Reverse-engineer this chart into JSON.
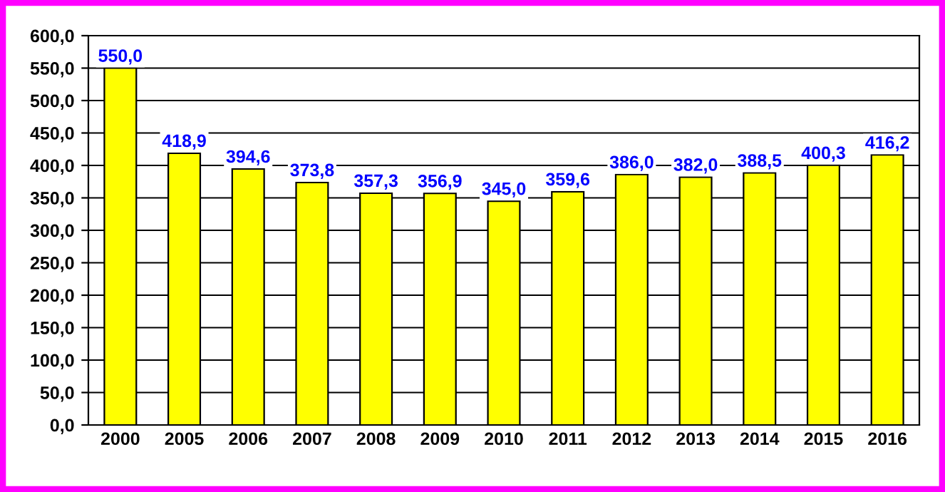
{
  "chart_data": {
    "type": "bar",
    "categories": [
      "2000",
      "2005",
      "2006",
      "2007",
      "2008",
      "2009",
      "2010",
      "2011",
      "2012",
      "2013",
      "2014",
      "2015",
      "2016"
    ],
    "values": [
      550.0,
      418.9,
      394.6,
      373.8,
      357.3,
      356.9,
      345.0,
      359.6,
      386.0,
      382.0,
      388.5,
      400.3,
      416.2
    ],
    "value_labels": [
      "550,0",
      "418,9",
      "394,6",
      "373,8",
      "357,3",
      "356,9",
      "345,0",
      "359,6",
      "386,0",
      "382,0",
      "388,5",
      "400,3",
      "416,2"
    ],
    "color": "#ffff00",
    "ylim": [
      0,
      600
    ],
    "yticks": [
      {
        "value": 0,
        "label": "0,0"
      },
      {
        "value": 50,
        "label": "50,0"
      },
      {
        "value": 100,
        "label": "100,0"
      },
      {
        "value": 150,
        "label": "150,0"
      },
      {
        "value": 200,
        "label": "200,0"
      },
      {
        "value": 250,
        "label": "250,0"
      },
      {
        "value": 300,
        "label": "300,0"
      },
      {
        "value": 350,
        "label": "350,0"
      },
      {
        "value": 400,
        "label": "400,0"
      },
      {
        "value": 450,
        "label": "450,0"
      },
      {
        "value": 500,
        "label": "500,0"
      },
      {
        "value": 550,
        "label": "550,0"
      },
      {
        "value": 600,
        "label": "600,0"
      }
    ],
    "grid": "y"
  }
}
